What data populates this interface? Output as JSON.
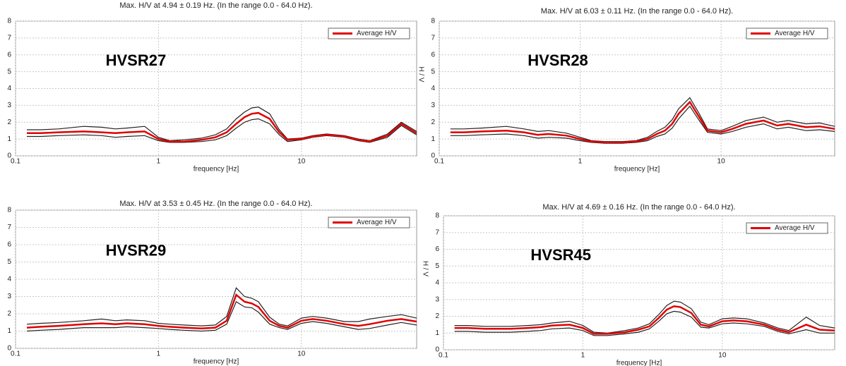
{
  "chart_data": [
    {
      "type": "line",
      "title": "Max. H/V at 4.94 ± 0.19 Hz. (In the range 0.0 - 64.0 Hz).",
      "annotation": "HVSR27",
      "x_label": "frequency [Hz]",
      "x_log": true,
      "grid": true,
      "legend": "upper right",
      "xlim": [
        0.1,
        64
      ],
      "xticks": [
        0.1,
        1,
        10
      ],
      "ylim": [
        0,
        8
      ],
      "yticks": [
        0,
        1,
        2,
        3,
        4,
        5,
        6,
        7,
        8
      ],
      "x": [
        0.12,
        0.15,
        0.2,
        0.3,
        0.4,
        0.5,
        0.6,
        0.8,
        1,
        1.2,
        1.5,
        2,
        2.5,
        3,
        3.5,
        4,
        4.5,
        5,
        6,
        7,
        8,
        10,
        12,
        15,
        20,
        25,
        30,
        40,
        50,
        64
      ],
      "series": [
        {
          "name": "Average H/V",
          "color": "#e00000",
          "values": [
            1.35,
            1.35,
            1.4,
            1.45,
            1.4,
            1.35,
            1.4,
            1.45,
            1.0,
            0.85,
            0.85,
            0.95,
            1.1,
            1.4,
            1.9,
            2.3,
            2.5,
            2.55,
            2.2,
            1.4,
            0.95,
            1.0,
            1.15,
            1.25,
            1.15,
            0.95,
            0.85,
            1.2,
            1.9,
            1.35
          ]
        },
        {
          "color": "#222222",
          "values": [
            1.55,
            1.55,
            1.6,
            1.75,
            1.7,
            1.6,
            1.65,
            1.75,
            1.1,
            0.9,
            0.95,
            1.05,
            1.25,
            1.6,
            2.2,
            2.6,
            2.85,
            2.9,
            2.5,
            1.55,
            1.0,
            1.05,
            1.2,
            1.3,
            1.2,
            1.0,
            0.9,
            1.3,
            2.0,
            1.45
          ]
        },
        {
          "color": "#222222",
          "values": [
            1.15,
            1.15,
            1.2,
            1.25,
            1.2,
            1.1,
            1.15,
            1.2,
            0.9,
            0.8,
            0.8,
            0.85,
            0.95,
            1.2,
            1.65,
            2.0,
            2.15,
            2.2,
            1.9,
            1.25,
            0.85,
            0.95,
            1.1,
            1.2,
            1.1,
            0.9,
            0.8,
            1.1,
            1.8,
            1.25
          ]
        }
      ]
    },
    {
      "type": "line",
      "title": "Max. H/V at 6.03 ± 0.11 Hz. (In the range 0.0 - 64.0 Hz).",
      "annotation": "HVSR28",
      "x_label": "frequency [Hz]",
      "y_label": "H / V",
      "x_log": true,
      "grid": true,
      "legend": "upper right",
      "xlim": [
        0.1,
        64
      ],
      "xticks": [
        0.1,
        1,
        10
      ],
      "ylim": [
        0,
        8
      ],
      "yticks": [
        0,
        1,
        2,
        3,
        4,
        5,
        6,
        7,
        8
      ],
      "x": [
        0.12,
        0.15,
        0.2,
        0.3,
        0.4,
        0.5,
        0.6,
        0.8,
        1,
        1.2,
        1.5,
        2,
        2.5,
        3,
        3.5,
        4,
        4.5,
        5,
        6,
        7,
        8,
        10,
        12,
        15,
        20,
        25,
        30,
        40,
        50,
        64
      ],
      "series": [
        {
          "name": "Average H/V",
          "color": "#e00000",
          "values": [
            1.4,
            1.4,
            1.45,
            1.5,
            1.4,
            1.25,
            1.3,
            1.2,
            1.0,
            0.85,
            0.8,
            0.8,
            0.85,
            1.0,
            1.3,
            1.5,
            1.9,
            2.5,
            3.2,
            2.3,
            1.5,
            1.4,
            1.6,
            1.9,
            2.1,
            1.8,
            1.9,
            1.7,
            1.75,
            1.6
          ]
        },
        {
          "color": "#222222",
          "values": [
            1.6,
            1.6,
            1.65,
            1.75,
            1.6,
            1.45,
            1.5,
            1.35,
            1.1,
            0.9,
            0.85,
            0.85,
            0.9,
            1.1,
            1.45,
            1.7,
            2.15,
            2.8,
            3.45,
            2.5,
            1.6,
            1.5,
            1.75,
            2.1,
            2.3,
            2.0,
            2.1,
            1.9,
            1.95,
            1.75
          ]
        },
        {
          "color": "#222222",
          "values": [
            1.2,
            1.2,
            1.25,
            1.3,
            1.2,
            1.05,
            1.1,
            1.05,
            0.9,
            0.8,
            0.75,
            0.75,
            0.8,
            0.9,
            1.15,
            1.3,
            1.65,
            2.2,
            2.95,
            2.1,
            1.4,
            1.3,
            1.45,
            1.7,
            1.9,
            1.6,
            1.7,
            1.5,
            1.55,
            1.45
          ]
        }
      ]
    },
    {
      "type": "line",
      "title": "Max. H/V at 3.53 ± 0.45 Hz. (In the range 0.0 - 64.0 Hz).",
      "annotation": "HVSR29",
      "x_label": "frequency [Hz]",
      "x_log": true,
      "grid": true,
      "legend": "upper right",
      "xlim": [
        0.1,
        64
      ],
      "xticks": [
        0.1,
        1,
        10
      ],
      "ylim": [
        0,
        8
      ],
      "yticks": [
        0,
        1,
        2,
        3,
        4,
        5,
        6,
        7,
        8
      ],
      "x": [
        0.12,
        0.15,
        0.2,
        0.3,
        0.4,
        0.5,
        0.6,
        0.8,
        1,
        1.2,
        1.5,
        2,
        2.5,
        3,
        3.5,
        4,
        4.5,
        5,
        6,
        7,
        8,
        10,
        12,
        15,
        20,
        25,
        30,
        40,
        50,
        64
      ],
      "series": [
        {
          "name": "Average H/V",
          "color": "#e00000",
          "values": [
            1.2,
            1.25,
            1.3,
            1.4,
            1.45,
            1.4,
            1.45,
            1.4,
            1.3,
            1.25,
            1.2,
            1.15,
            1.2,
            1.6,
            3.1,
            2.7,
            2.6,
            2.4,
            1.6,
            1.3,
            1.2,
            1.6,
            1.7,
            1.6,
            1.4,
            1.3,
            1.4,
            1.6,
            1.7,
            1.55
          ]
        },
        {
          "color": "#222222",
          "values": [
            1.4,
            1.45,
            1.5,
            1.6,
            1.7,
            1.6,
            1.65,
            1.6,
            1.45,
            1.4,
            1.35,
            1.3,
            1.35,
            1.85,
            3.5,
            3.0,
            2.9,
            2.7,
            1.8,
            1.4,
            1.3,
            1.75,
            1.85,
            1.75,
            1.55,
            1.55,
            1.7,
            1.85,
            1.95,
            1.75
          ]
        },
        {
          "color": "#222222",
          "values": [
            1.0,
            1.05,
            1.1,
            1.2,
            1.2,
            1.2,
            1.25,
            1.2,
            1.15,
            1.1,
            1.05,
            1.0,
            1.05,
            1.4,
            2.7,
            2.4,
            2.35,
            2.1,
            1.4,
            1.2,
            1.1,
            1.45,
            1.55,
            1.45,
            1.25,
            1.1,
            1.15,
            1.35,
            1.5,
            1.35
          ]
        }
      ]
    },
    {
      "type": "line",
      "title": "Max. H/V at 4.69 ± 0.16 Hz. (In the range 0.0 - 64.0 Hz).",
      "annotation": "HVSR45",
      "x_label": "frequency [Hz]",
      "y_label": "H / V",
      "x_log": true,
      "grid": true,
      "legend": "upper right",
      "xlim": [
        0.1,
        64
      ],
      "xticks": [
        0.1,
        1,
        10
      ],
      "ylim": [
        0,
        8
      ],
      "yticks": [
        0,
        1,
        2,
        3,
        4,
        5,
        6,
        7,
        8
      ],
      "x": [
        0.12,
        0.15,
        0.2,
        0.3,
        0.4,
        0.5,
        0.6,
        0.8,
        1,
        1.2,
        1.5,
        2,
        2.5,
        3,
        3.5,
        4,
        4.5,
        5,
        6,
        7,
        8,
        10,
        12,
        15,
        20,
        25,
        30,
        40,
        50,
        64
      ],
      "series": [
        {
          "name": "Average H/V",
          "color": "#e00000",
          "values": [
            1.3,
            1.3,
            1.25,
            1.25,
            1.3,
            1.35,
            1.45,
            1.5,
            1.3,
            0.95,
            0.95,
            1.05,
            1.2,
            1.4,
            1.9,
            2.4,
            2.6,
            2.55,
            2.2,
            1.5,
            1.4,
            1.7,
            1.75,
            1.7,
            1.5,
            1.2,
            1.05,
            1.5,
            1.2,
            1.15
          ]
        },
        {
          "color": "#222222",
          "values": [
            1.45,
            1.45,
            1.4,
            1.4,
            1.45,
            1.5,
            1.6,
            1.7,
            1.45,
            1.05,
            1.0,
            1.15,
            1.3,
            1.55,
            2.1,
            2.65,
            2.9,
            2.85,
            2.45,
            1.65,
            1.5,
            1.85,
            1.9,
            1.85,
            1.6,
            1.3,
            1.15,
            1.95,
            1.45,
            1.3
          ]
        },
        {
          "color": "#222222",
          "values": [
            1.1,
            1.1,
            1.05,
            1.05,
            1.1,
            1.15,
            1.25,
            1.3,
            1.15,
            0.85,
            0.85,
            0.95,
            1.05,
            1.25,
            1.7,
            2.15,
            2.3,
            2.25,
            1.95,
            1.35,
            1.3,
            1.55,
            1.6,
            1.55,
            1.4,
            1.1,
            0.95,
            1.2,
            1.0,
            1.0
          ]
        }
      ]
    }
  ]
}
